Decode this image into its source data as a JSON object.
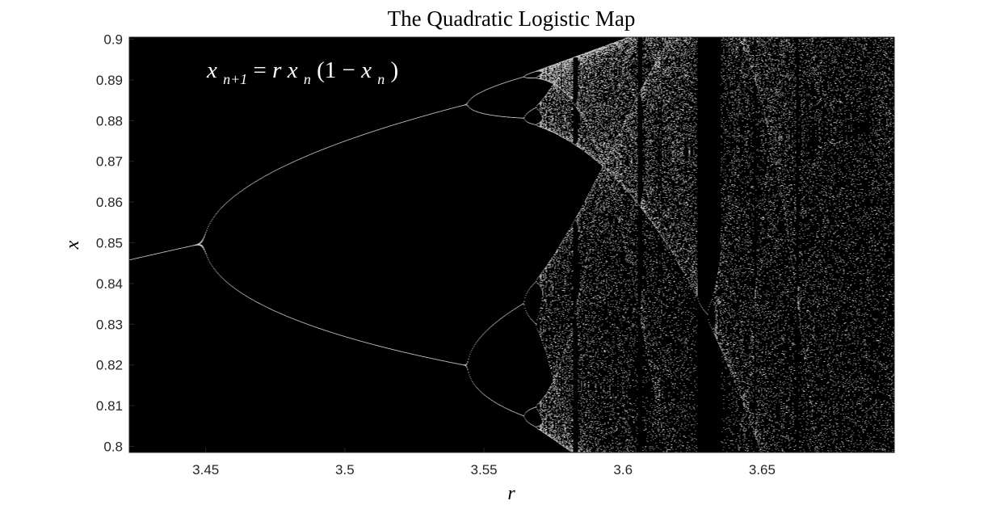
{
  "chart_data": {
    "type": "scatter",
    "title": "The Quadratic Logistic Map",
    "xlabel": "r",
    "ylabel": "x",
    "xlim": [
      3.4225,
      3.6975
    ],
    "ylim": [
      0.7985,
      0.9005
    ],
    "xticks": [
      3.45,
      3.5,
      3.55,
      3.6,
      3.65
    ],
    "xtick_labels": [
      "3.45",
      "3.5",
      "3.55",
      "3.6",
      "3.65"
    ],
    "yticks": [
      0.8,
      0.81,
      0.82,
      0.83,
      0.84,
      0.85,
      0.86,
      0.87,
      0.88,
      0.89,
      0.9
    ],
    "ytick_labels": [
      "0.8",
      "0.81",
      "0.82",
      "0.83",
      "0.84",
      "0.85",
      "0.86",
      "0.87",
      "0.88",
      "0.89",
      "0.9"
    ],
    "grid": false,
    "annotation": {
      "lhs_base": "x",
      "lhs_sub": "n+1",
      "eq": " = ",
      "r": "r",
      "x1": "x",
      "sub1": "n",
      "mid": "(1 − ",
      "x2": "x",
      "sub2": "n",
      "end": ")"
    },
    "series": [
      {
        "map": "x[n+1] = r x[n] (1 - x[n])",
        "r_range": [
          3.4225,
          3.6975
        ],
        "x_window": [
          0.7985,
          0.9005
        ],
        "marker_color": "#ffffff",
        "background_color": "#000000"
      }
    ]
  }
}
